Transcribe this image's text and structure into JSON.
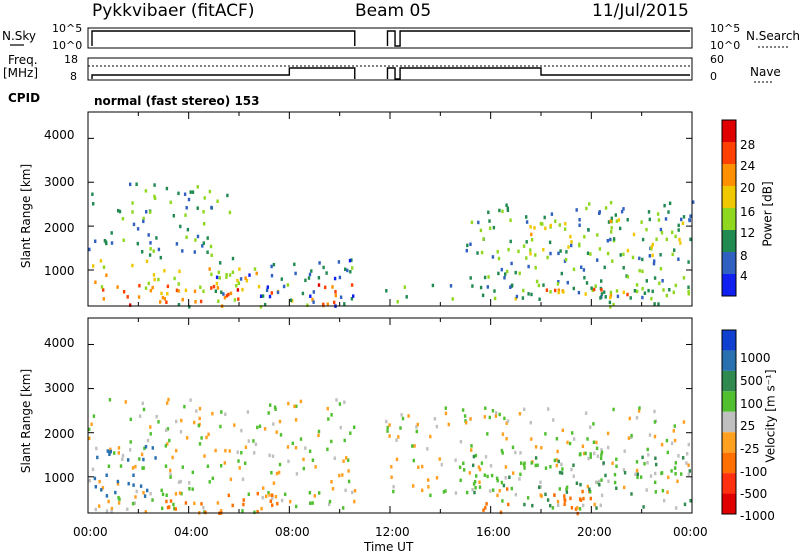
{
  "header": {
    "radar": "Pykkvibaer (fitACF)",
    "beam": "Beam 05",
    "date": "11/Jul/2015"
  },
  "panels": {
    "nsky_label": "N.Sky",
    "nsky_ticks": [
      "10^5",
      "10^0"
    ],
    "nsearch_label": "N.Search",
    "nsearch_ticks": [
      "10^5",
      "10^0"
    ],
    "freq_label_1": "Freq.",
    "freq_label_2": "[MHz]",
    "freq_ticks": [
      "18",
      "8"
    ],
    "nave_label": "Nave",
    "nave_ticks": [
      "60",
      "0"
    ],
    "cpid_label": "CPID",
    "cpid_text": "normal (fast stereo) 153"
  },
  "axes": {
    "ylabel": "Slant Range [km]",
    "yticks": [
      "4000",
      "3000",
      "2000",
      "1000"
    ],
    "xlabel": "Time UT",
    "xticks": [
      "00:00",
      "04:00",
      "08:00",
      "12:00",
      "16:00",
      "20:00",
      "00:00"
    ]
  },
  "colorbars": {
    "power_label": "Power [dB]",
    "power_ticks": [
      "28",
      "24",
      "20",
      "16",
      "12",
      "8",
      "4"
    ],
    "power_colors": [
      "#e00000",
      "#ff4000",
      "#ff9000",
      "#f0c800",
      "#90d820",
      "#208a50",
      "#3060c0",
      "#1020f0"
    ],
    "velocity_label": "Velocity [m s⁻¹]",
    "velocity_ticks": [
      "1000",
      "500",
      "100",
      "25",
      "-25",
      "-100",
      "-500",
      "-1000"
    ],
    "velocity_colors": [
      "#1040d0",
      "#2870b0",
      "#308a50",
      "#50c030",
      "#c0c0c0",
      "#ffa020",
      "#ff7000",
      "#ff3010",
      "#e00000"
    ]
  },
  "chart_data": [
    {
      "type": "heatmap",
      "title": "Power",
      "xlabel": "Time UT",
      "ylabel": "Slant Range [km]",
      "xlim": [
        "00:00",
        "24:00"
      ],
      "ylim": [
        180,
        4600
      ],
      "color_scale": {
        "label": "Power [dB]",
        "min": 0,
        "max": 32
      },
      "regions": [
        {
          "t0": 0.0,
          "t1": 10.6,
          "r0": 200,
          "r1": 700,
          "level": 24
        },
        {
          "t0": 0.1,
          "t1": 2.5,
          "r0": 600,
          "r1": 1300,
          "level": 18
        },
        {
          "t0": 2.5,
          "t1": 7.2,
          "r0": 200,
          "r1": 1100,
          "level": 16
        },
        {
          "t0": 0.0,
          "t1": 5.6,
          "r0": 1300,
          "r1": 3000,
          "level": 10
        },
        {
          "t0": 5.0,
          "t1": 10.6,
          "r0": 200,
          "r1": 1400,
          "level": 8
        },
        {
          "t0": 11.8,
          "t1": 24.0,
          "r0": 200,
          "r1": 700,
          "level": 12
        },
        {
          "t0": 15.0,
          "t1": 24.0,
          "r0": 400,
          "r1": 2600,
          "level": 10
        },
        {
          "t0": 17.0,
          "t1": 24.0,
          "r0": 1300,
          "r1": 2200,
          "level": 16
        },
        {
          "t0": 18.0,
          "t1": 22.0,
          "r0": 250,
          "r1": 650,
          "level": 20
        }
      ]
    },
    {
      "type": "heatmap",
      "title": "Velocity",
      "xlabel": "Time UT",
      "ylabel": "Slant Range [km]",
      "xlim": [
        "00:00",
        "24:00"
      ],
      "ylim": [
        180,
        4600
      ],
      "color_scale": {
        "label": "Velocity [m s⁻¹]",
        "min": -1000,
        "max": 1000
      },
      "regions": [
        {
          "t0": 0.0,
          "t1": 10.6,
          "r0": 200,
          "r1": 2800,
          "value": 0
        },
        {
          "t0": 3.0,
          "t1": 7.8,
          "r0": 200,
          "r1": 700,
          "value": -300
        },
        {
          "t0": 0.2,
          "t1": 2.8,
          "r0": 600,
          "r1": 1800,
          "value": 600
        },
        {
          "t0": 11.8,
          "t1": 24.0,
          "r0": 600,
          "r1": 2600,
          "value": 0
        },
        {
          "t0": 15.5,
          "t1": 20.5,
          "r0": 200,
          "r1": 800,
          "value": -150
        },
        {
          "t0": 15.0,
          "t1": 24.0,
          "r0": 300,
          "r1": 1600,
          "value": 80
        }
      ]
    }
  ]
}
